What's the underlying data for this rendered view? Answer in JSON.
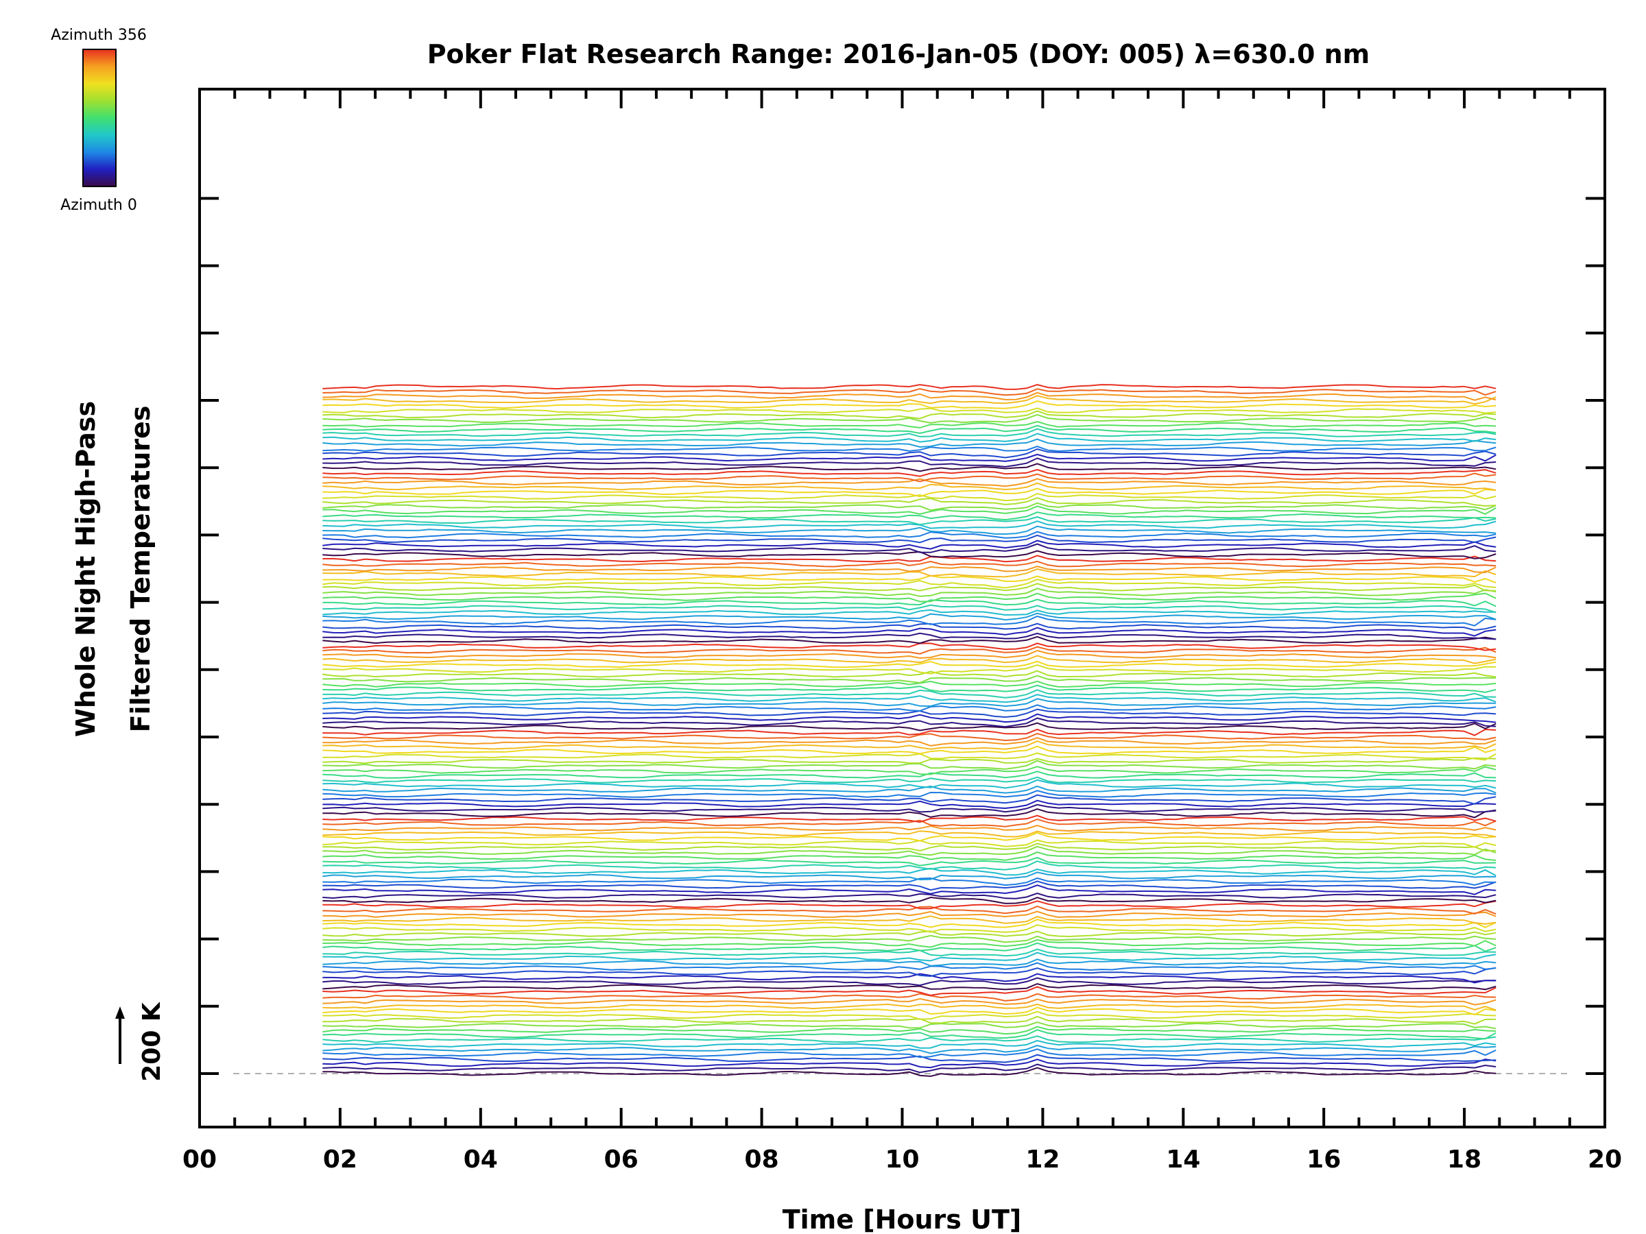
{
  "chart_data": {
    "type": "line",
    "title": "Poker Flat Research Range: 2016-Jan-05 (DOY: 005) λ=630.0 nm",
    "xlabel": "Time [Hours UT]",
    "ylabel": [
      "Whole Night High-Pass",
      "Filtered Temperatures"
    ],
    "xlim": [
      0,
      20
    ],
    "x_tick_labels": [
      "00",
      "02",
      "04",
      "06",
      "08",
      "10",
      "12",
      "14",
      "16",
      "18",
      "20"
    ],
    "y_scale_label": "200 K",
    "grid": false,
    "time_range": [
      1.75,
      18.45
    ],
    "n_traces": 144,
    "trace_offset_K": 14.3,
    "colorbar": {
      "top_label": "Azimuth 356",
      "bottom_label": "Azimuth 0",
      "colors": [
        "#3b0a4a",
        "#2020c0",
        "#1e88e5",
        "#20c8c8",
        "#40e070",
        "#a0e030",
        "#f0e020",
        "#f5a020",
        "#e83020"
      ]
    },
    "azimuth_cycle_length": 18,
    "disturbance_times": [
      10.3,
      11.9
    ]
  }
}
